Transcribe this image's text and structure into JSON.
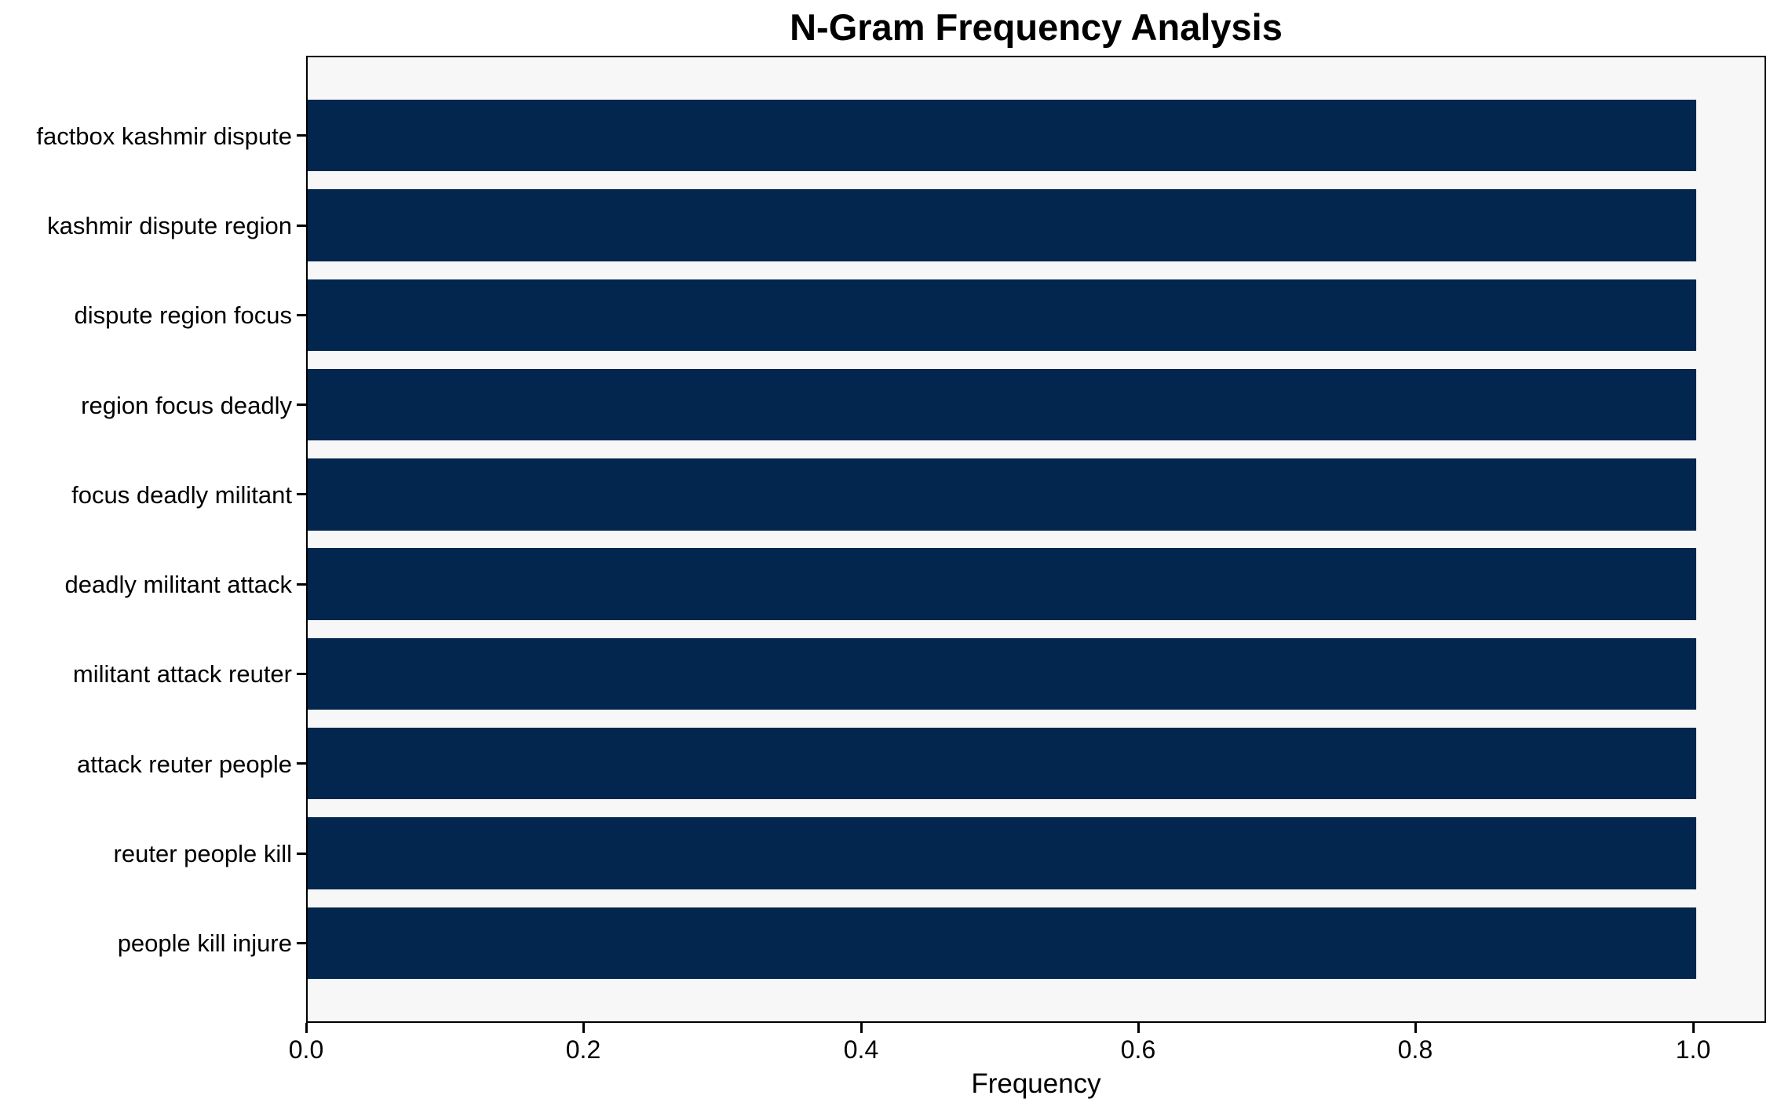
{
  "chart_data": {
    "type": "bar",
    "orientation": "horizontal",
    "title": "N-Gram Frequency Analysis",
    "xlabel": "Frequency",
    "ylabel": "",
    "categories": [
      "factbox kashmir dispute",
      "kashmir dispute region",
      "dispute region focus",
      "region focus deadly",
      "focus deadly militant",
      "deadly militant attack",
      "militant attack reuter",
      "attack reuter people",
      "reuter people kill",
      "people kill injure"
    ],
    "values": [
      1.0,
      1.0,
      1.0,
      1.0,
      1.0,
      1.0,
      1.0,
      1.0,
      1.0,
      1.0
    ],
    "xlim": [
      0,
      1.05
    ],
    "x_ticks": [
      {
        "value": 0.0,
        "label": "0.0"
      },
      {
        "value": 0.2,
        "label": "0.2"
      },
      {
        "value": 0.4,
        "label": "0.4"
      },
      {
        "value": 0.6,
        "label": "0.6"
      },
      {
        "value": 0.8,
        "label": "0.8"
      },
      {
        "value": 1.0,
        "label": "1.0"
      }
    ],
    "grid": false,
    "legend": "none",
    "colors": {
      "bar": "#02264e",
      "plot_background": "#f7f7f7",
      "figure_background": "#ffffff",
      "spine": "#000000",
      "text": "#000000"
    }
  }
}
